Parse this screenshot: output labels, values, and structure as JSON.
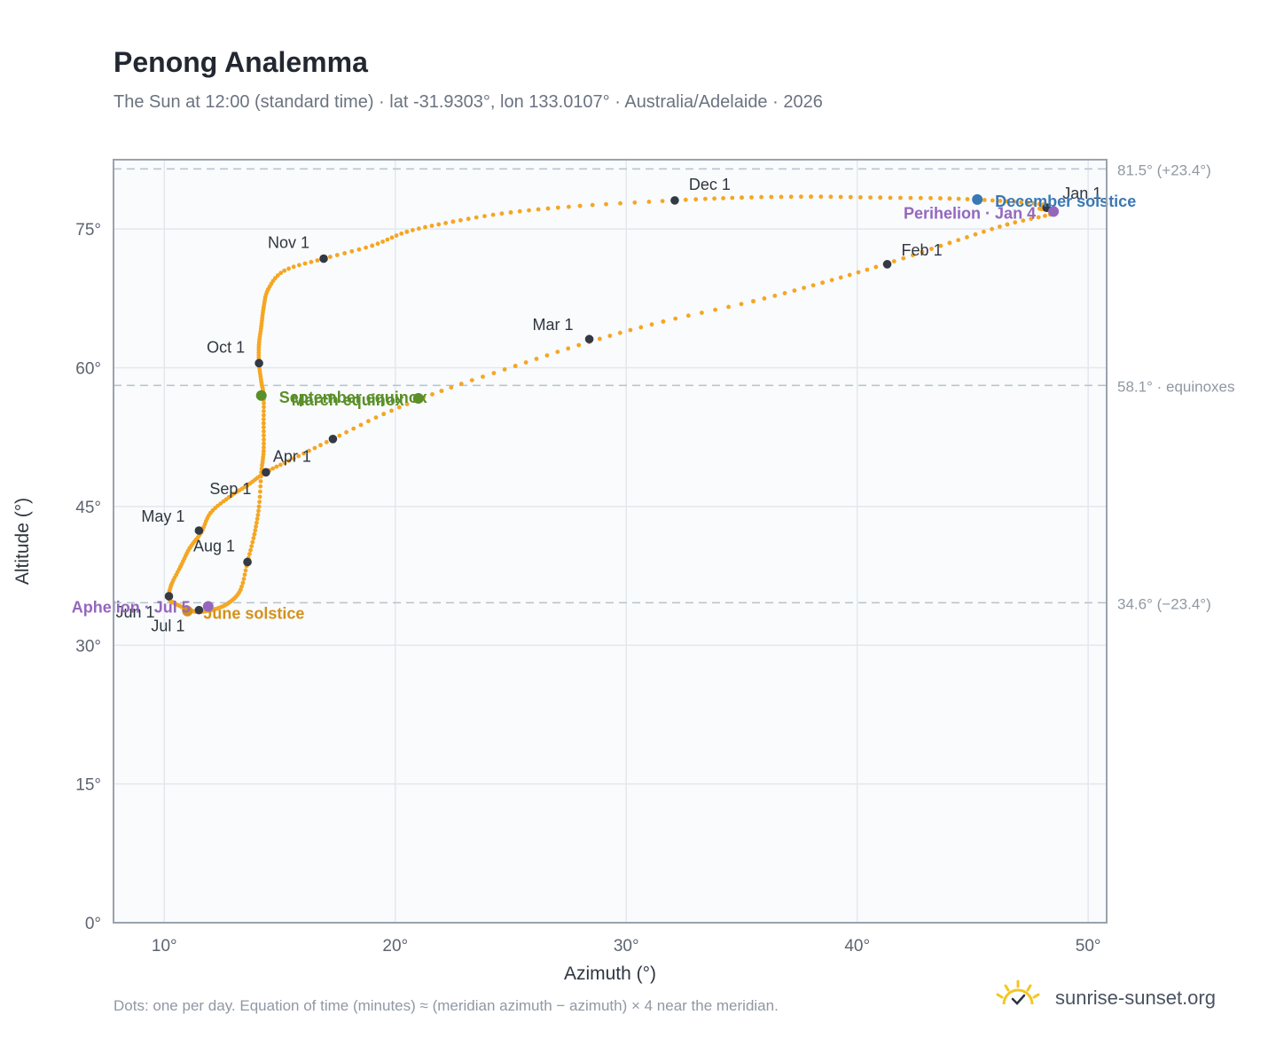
{
  "title": "Penong Analemma",
  "subtitle": "The Sun at 12:00 (standard time) · lat -31.9303°, lon 133.0107° · Australia/Adelaide · 2026",
  "footnote": "Dots: one per day. Equation of time (minutes) ≈ (meridian azimuth − azimuth) × 4 near the meridian.",
  "brand": {
    "name": "sunrise-sunset.org",
    "icon": "sun-logo-icon"
  },
  "colors": {
    "curve": "#f5a623",
    "month_marker": "#343a44",
    "december_solstice": "#3a78b5",
    "june_solstice": "#d4911a",
    "equinox": "#5a8f29",
    "apsis": "#9467bd",
    "reference_line": "#b6c2cc",
    "plot_bg": "#f9fbfd",
    "axis": "#9aa3ad"
  },
  "chart_data": {
    "type": "scatter",
    "xlabel": "Azimuth (°)",
    "ylabel": "Altitude (°)",
    "xlim": [
      7.8,
      50.8
    ],
    "ylim": [
      0,
      82.5
    ],
    "x_ticks": [
      10,
      20,
      30,
      40,
      50
    ],
    "y_ticks": [
      0,
      15,
      30,
      45,
      60,
      75
    ],
    "x_tick_labels": [
      "10°",
      "20°",
      "30°",
      "40°",
      "50°"
    ],
    "y_tick_labels": [
      "0°",
      "15°",
      "30°",
      "45°",
      "60°",
      "75°"
    ],
    "grid": true,
    "reference_lines": [
      {
        "y": 81.5,
        "label": "81.5° (+23.4°)"
      },
      {
        "y": 58.1,
        "label": "58.1° · equinoxes"
      },
      {
        "y": 34.6,
        "label": "34.6° (−23.4°)"
      }
    ],
    "series": [
      {
        "marker": "dot-per-day",
        "x": [
          47.9,
          48.5,
          46.5,
          44.0,
          41.2,
          38.5,
          35.5,
          31.6,
          28.4,
          25.2,
          22.0,
          19.5,
          17.3,
          15.6,
          14.4,
          13.6,
          12.8,
          12.0,
          11.6,
          11.1,
          10.7,
          10.3,
          10.2,
          10.4,
          10.8,
          11.1,
          11.5,
          12.2,
          12.8,
          13.3,
          13.6,
          13.9,
          14.1,
          14.2,
          14.3,
          14.3,
          14.3,
          14.2,
          14.1,
          14.1,
          14.2,
          14.3,
          14.5,
          15.2,
          16.9,
          19.0,
          20.5,
          22.5,
          25.0,
          28.0,
          32.1,
          35.0,
          38.0,
          41.0,
          44.0,
          46.5,
          48.2,
          47.9
        ],
        "y": [
          77.2,
          76.7,
          75.5,
          73.5,
          71.2,
          69.2,
          67.2,
          65.0,
          62.8,
          60.2,
          57.5,
          55.0,
          52.3,
          50.2,
          48.7,
          47.3,
          46.0,
          44.3,
          42.2,
          40.5,
          38.5,
          36.5,
          35.1,
          34.6,
          34.1,
          33.8,
          33.6,
          33.9,
          34.6,
          36.0,
          39.0,
          42.0,
          45.0,
          48.7,
          51.0,
          54.0,
          56.9,
          58.5,
          60.5,
          62.5,
          64.5,
          66.5,
          68.5,
          70.5,
          71.8,
          73.2,
          74.7,
          75.8,
          76.8,
          77.5,
          78.1,
          78.4,
          78.5,
          78.4,
          78.3,
          78.0,
          77.6,
          77.2
        ]
      }
    ],
    "month_markers": [
      {
        "label": "Jan 1",
        "x": 48.2,
        "y": 77.3
      },
      {
        "label": "Feb 1",
        "x": 41.3,
        "y": 71.2
      },
      {
        "label": "Mar 1",
        "x": 28.4,
        "y": 63.1
      },
      {
        "label": "Apr 1",
        "x": 14.4,
        "y": 48.7
      },
      {
        "label": "May 1",
        "x": 11.5,
        "y": 42.4
      },
      {
        "label": "Jun 1",
        "x": 10.2,
        "y": 35.3
      },
      {
        "label": "Jul 1",
        "x": 11.5,
        "y": 33.8
      },
      {
        "label": "Aug 1",
        "x": 13.6,
        "y": 39.0
      },
      {
        "label": "Sep 1",
        "x": 17.3,
        "y": 52.3
      },
      {
        "label": "Oct 1",
        "x": 14.1,
        "y": 60.5
      },
      {
        "label": "Nov 1",
        "x": 16.9,
        "y": 71.8
      },
      {
        "label": "Dec 1",
        "x": 32.1,
        "y": 78.1
      }
    ],
    "events": [
      {
        "label": "December solstice",
        "x": 45.2,
        "y": 78.2,
        "kind": "december_solstice"
      },
      {
        "label": "Perihelion · Jan 4",
        "x": 48.5,
        "y": 76.9,
        "kind": "apsis"
      },
      {
        "label": "September equinox",
        "x": 14.2,
        "y": 57.0,
        "kind": "equinox"
      },
      {
        "label": "March equinox",
        "x": 21.0,
        "y": 56.7,
        "kind": "equinox"
      },
      {
        "label": "June solstice",
        "x": 11.0,
        "y": 33.7,
        "kind": "june_solstice"
      },
      {
        "label": "Aphelion · Jul 5",
        "x": 11.9,
        "y": 34.2,
        "kind": "apsis"
      }
    ]
  }
}
